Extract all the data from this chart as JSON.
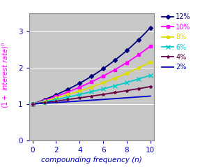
{
  "rates": [
    0.12,
    0.1,
    0.08,
    0.06,
    0.04,
    0.02
  ],
  "labels": [
    "12%",
    "10%",
    "8%",
    "6%",
    "4%",
    "2%"
  ],
  "line_colors": [
    "#00007F",
    "#FF00FF",
    "#DDDD00",
    "#00CCCC",
    "#660044",
    "#0000CC"
  ],
  "legend_text_colors": [
    "#00007F",
    "#FF00FF",
    "#DDDD00",
    "#00CCCC",
    "#660044",
    "#0000CC"
  ],
  "marker_types": [
    "D",
    "s",
    "o",
    "x",
    "*",
    null
  ],
  "marker_sizes": [
    3,
    3,
    3,
    4,
    3,
    0
  ],
  "n_max": 10,
  "xlim": [
    -0.3,
    10.3
  ],
  "ylim": [
    0,
    3.5
  ],
  "xticks": [
    0,
    2,
    4,
    6,
    8,
    10
  ],
  "yticks": [
    0,
    1,
    2,
    3
  ],
  "xlabel": "compounding frequency (n)",
  "ylabel_color": "#FF00FF",
  "axis_label_color": "#0000BB",
  "tick_label_color": "#0000BB",
  "background_color": "#C8C8C8",
  "fig_background": "#FFFFFF"
}
